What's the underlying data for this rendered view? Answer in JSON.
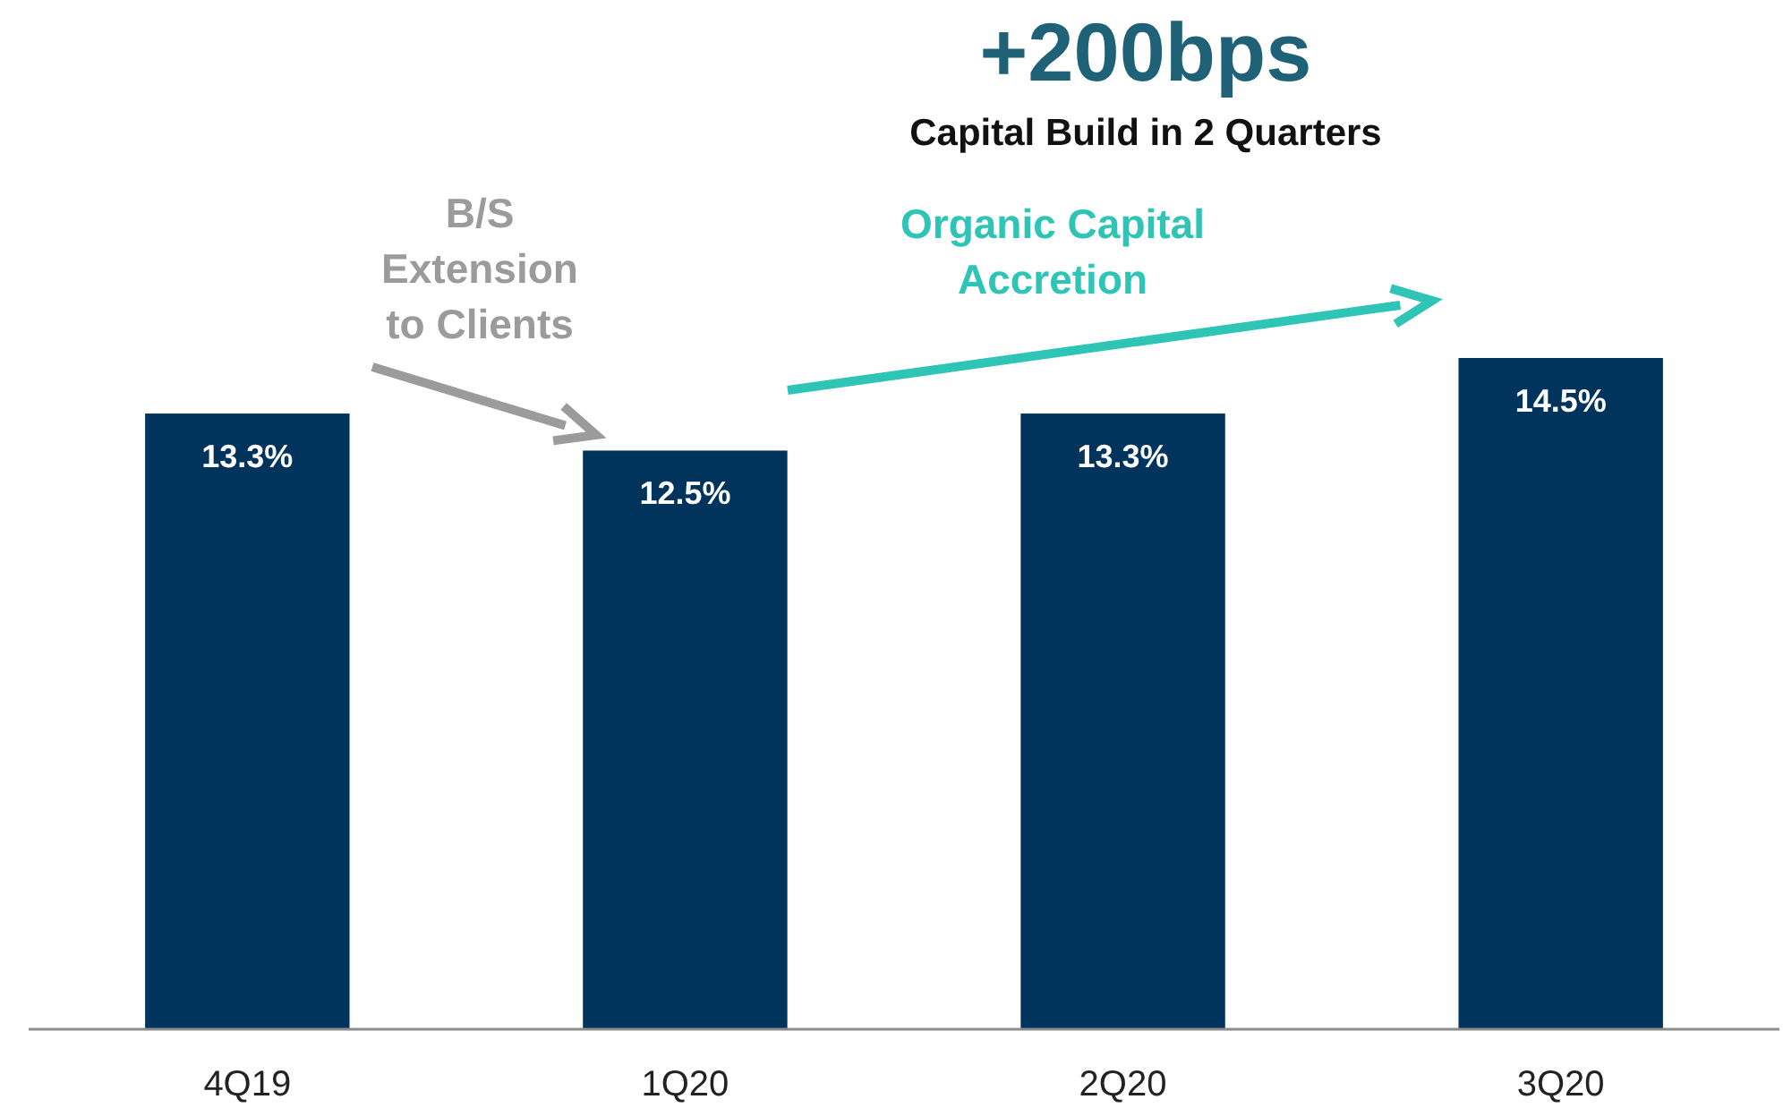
{
  "chart_data": {
    "type": "bar",
    "title": "+200bps",
    "subtitle": "Capital Build in 2 Quarters",
    "categories": [
      "4Q19",
      "1Q20",
      "2Q20",
      "3Q20"
    ],
    "values": [
      13.3,
      12.5,
      13.3,
      14.5
    ],
    "value_labels": [
      "13.3%",
      "12.5%",
      "13.3%",
      "14.5%"
    ],
    "color": "#00345c",
    "tick_labels": "x",
    "grid": false,
    "annotations": [
      "B/S\nExtension\nto Clients",
      "Organic Capital\nAccretion"
    ]
  }
}
